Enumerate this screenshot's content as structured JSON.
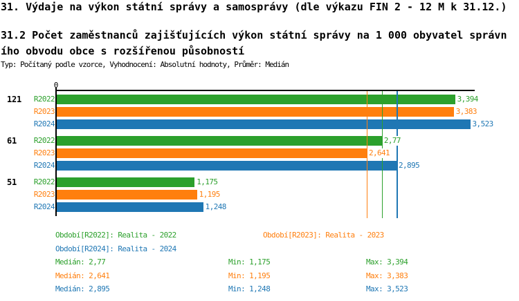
{
  "header": {
    "title1": "31. Výdaje na výkon státní správy a samosprávy (dle výkazu FIN 2 - 12 M k 31.12.)",
    "title2": "31.2 Počet zaměstnanců zajišťujících výkon státní správy na 1 000 obyvatel správního obvodu obce s rozšířenou působností",
    "meta": "Typ: Počítaný podle vzorce, Vyhodnocení: Absolutní hodnoty, Průměr: Medián"
  },
  "chart_data": {
    "type": "bar",
    "orientation": "horizontal",
    "grid": false,
    "zero_label": "0",
    "xlim": [
      0,
      3.567
    ],
    "categories": [
      "121",
      "61",
      "51"
    ],
    "legend_position": "bottom",
    "series": [
      {
        "name": "R2022",
        "color": "#2ca02c",
        "legend_label": "Období[R2022]: Realita - 2022",
        "values": [
          3.394,
          2.77,
          1.175
        ],
        "value_labels": [
          "3,394",
          "2,77",
          "1,175"
        ],
        "median": 2.77,
        "stats": {
          "median_text": "Medián: 2,77",
          "min_text": "Min: 1,175",
          "max_text": "Max: 3,394"
        }
      },
      {
        "name": "R2023",
        "color": "#ff7f0e",
        "legend_label": "Období[R2023]: Realita - 2023",
        "values": [
          3.383,
          2.641,
          1.195
        ],
        "value_labels": [
          "3,383",
          "2,641",
          "1,195"
        ],
        "median": 2.641,
        "stats": {
          "median_text": "Medián: 2,641",
          "min_text": "Min: 1,195",
          "max_text": "Max: 3,383"
        }
      },
      {
        "name": "R2024",
        "color": "#1f77b4",
        "legend_label": "Období[R2024]: Realita - 2024",
        "values": [
          3.523,
          2.895,
          1.248
        ],
        "value_labels": [
          "3,523",
          "2,895",
          "1,248"
        ],
        "median": 2.895,
        "stats": {
          "median_text": "Medián: 2,895",
          "min_text": "Min: 1,248",
          "max_text": "Max: 3,523"
        }
      }
    ]
  }
}
